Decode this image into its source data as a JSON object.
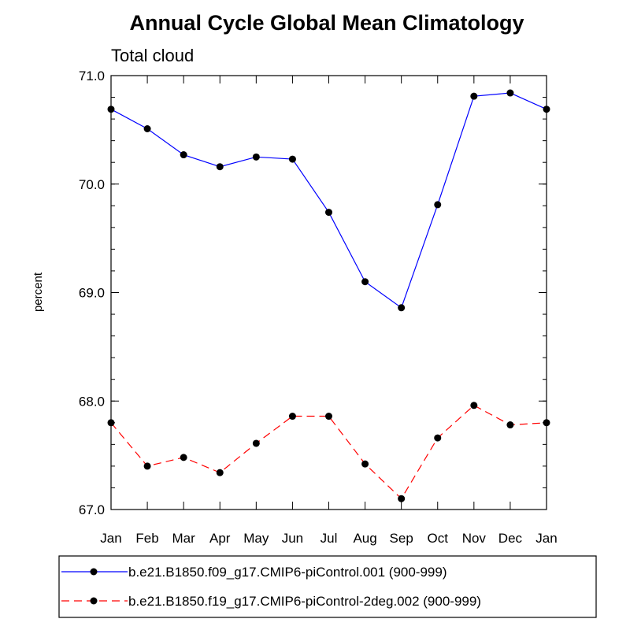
{
  "chart_data": {
    "type": "line",
    "title": "Annual Cycle Global Mean Climatology",
    "subtitle": "Total cloud",
    "xlabel": "",
    "ylabel": "percent",
    "categories": [
      "Jan",
      "Feb",
      "Mar",
      "Apr",
      "May",
      "Jun",
      "Jul",
      "Aug",
      "Sep",
      "Oct",
      "Nov",
      "Dec",
      "Jan"
    ],
    "ylim": [
      67.0,
      71.0
    ],
    "yticks": [
      67.0,
      68.0,
      69.0,
      70.0,
      71.0
    ],
    "ytick_labels": [
      "67.0",
      "68.0",
      "69.0",
      "70.0",
      "71.0"
    ],
    "minor_ytick_step": 0.2,
    "grid": false,
    "legend_position": "bottom",
    "series": [
      {
        "name": "b.e21.B1850.f09_g17.CMIP6-piControl.001 (900-999)",
        "color": "#0000ff",
        "dash": "solid",
        "values": [
          70.69,
          70.51,
          70.27,
          70.16,
          70.25,
          70.23,
          69.74,
          69.1,
          68.86,
          69.81,
          70.81,
          70.84,
          70.69
        ]
      },
      {
        "name": "b.e21.B1850.f19_g17.CMIP6-piControl-2deg.002 (900-999)",
        "color": "#ff0000",
        "dash": "dashed",
        "values": [
          67.8,
          67.4,
          67.48,
          67.34,
          67.61,
          67.86,
          67.86,
          67.42,
          67.1,
          67.66,
          67.96,
          67.78,
          67.8
        ]
      }
    ]
  }
}
